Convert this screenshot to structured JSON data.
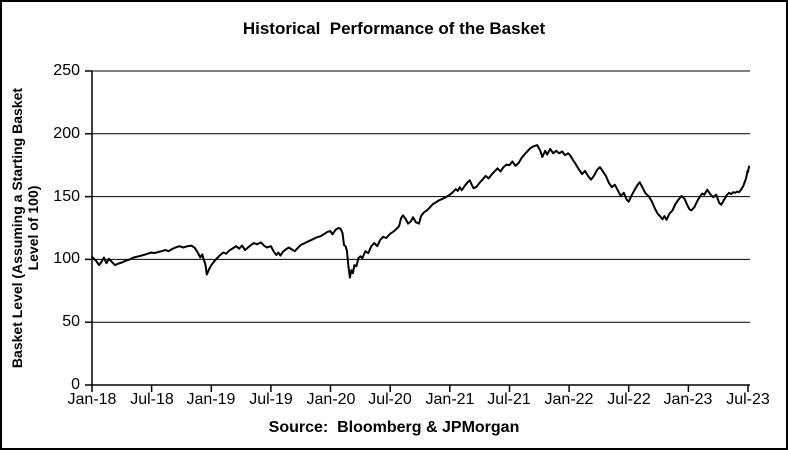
{
  "chart": {
    "title": "Historical  Performance of the Basket",
    "y_axis_title_line1": "Basket Level (Assuming a Starting Basket",
    "y_axis_title_line2": "Level of 100)",
    "source": "Source:  Bloomberg & JPMorgan"
  },
  "chart_data": {
    "type": "line",
    "title": "Historical Performance of the Basket",
    "ylabel": "Basket Level (Assuming a Starting Basket Level of 100)",
    "xlabel": "",
    "source_note": "Source: Bloomberg & JPMorgan",
    "legend": "none",
    "grid": "horizontal",
    "line_color": "#000000",
    "ylim": [
      0,
      250
    ],
    "y_ticks": [
      0,
      50,
      100,
      150,
      200,
      250
    ],
    "y_tick_labels": [
      "0",
      "50",
      "100",
      "150",
      "200",
      "250"
    ],
    "x_tick_labels": [
      "Jan-18",
      "Jul-18",
      "Jan-19",
      "Jul-19",
      "Jan-20",
      "Jul-20",
      "Jan-21",
      "Jul-21",
      "Jan-22",
      "Jul-22",
      "Jan-23",
      "Jul-23"
    ],
    "x_unit": "months since Jan-2018",
    "x_tick_interval_months": 6,
    "xlim": [
      0,
      66.1
    ],
    "series": [
      {
        "name": "Basket Level",
        "points": [
          [
            0,
            102
          ],
          [
            0.4,
            99
          ],
          [
            0.7,
            95.5
          ],
          [
            1,
            98.5
          ],
          [
            1.2,
            101.5
          ],
          [
            1.45,
            97
          ],
          [
            1.7,
            100.5
          ],
          [
            2,
            98
          ],
          [
            2.3,
            95.5
          ],
          [
            2.6,
            96.5
          ],
          [
            3,
            97.5
          ],
          [
            3.4,
            99
          ],
          [
            3.8,
            100
          ],
          [
            4.2,
            101.5
          ],
          [
            4.7,
            102.5
          ],
          [
            5.2,
            103.5
          ],
          [
            5.6,
            104.5
          ],
          [
            6,
            105.5
          ],
          [
            6.3,
            105
          ],
          [
            6.7,
            106
          ],
          [
            7,
            106.5
          ],
          [
            7.4,
            107.5
          ],
          [
            7.7,
            106.5
          ],
          [
            8,
            108
          ],
          [
            8.4,
            109.5
          ],
          [
            8.8,
            110.5
          ],
          [
            9.2,
            109.5
          ],
          [
            9.6,
            110.5
          ],
          [
            10,
            111
          ],
          [
            10.3,
            109.5
          ],
          [
            10.6,
            106
          ],
          [
            10.9,
            101.5
          ],
          [
            11.1,
            104
          ],
          [
            11.25,
            99.5
          ],
          [
            11.4,
            96.5
          ],
          [
            11.55,
            88
          ],
          [
            11.8,
            92.5
          ],
          [
            12,
            95.5
          ],
          [
            12.3,
            98.5
          ],
          [
            12.6,
            101
          ],
          [
            12.9,
            103.5
          ],
          [
            13.2,
            105.5
          ],
          [
            13.5,
            104.5
          ],
          [
            13.8,
            107
          ],
          [
            14.2,
            109
          ],
          [
            14.5,
            110.5
          ],
          [
            14.8,
            108.5
          ],
          [
            15.1,
            111
          ],
          [
            15.4,
            107.5
          ],
          [
            15.7,
            109.5
          ],
          [
            16,
            111.5
          ],
          [
            16.3,
            113
          ],
          [
            16.6,
            112
          ],
          [
            17,
            113.5
          ],
          [
            17.3,
            111
          ],
          [
            17.6,
            109.5
          ],
          [
            18,
            110.5
          ],
          [
            18.3,
            106
          ],
          [
            18.55,
            103.5
          ],
          [
            18.75,
            105.5
          ],
          [
            18.95,
            103
          ],
          [
            19.2,
            106
          ],
          [
            19.5,
            108
          ],
          [
            19.8,
            109.5
          ],
          [
            20.1,
            108
          ],
          [
            20.4,
            106.5
          ],
          [
            20.7,
            109
          ],
          [
            21,
            111.5
          ],
          [
            21.4,
            113
          ],
          [
            21.8,
            114.5
          ],
          [
            22.2,
            116
          ],
          [
            22.6,
            117.5
          ],
          [
            23,
            118.5
          ],
          [
            23.4,
            120.5
          ],
          [
            23.7,
            122
          ],
          [
            24,
            122.5
          ],
          [
            24.2,
            120
          ],
          [
            24.5,
            123.5
          ],
          [
            24.8,
            125
          ],
          [
            25,
            124.5
          ],
          [
            25.2,
            121
          ],
          [
            25.35,
            111.5
          ],
          [
            25.5,
            110.5
          ],
          [
            25.65,
            107
          ],
          [
            25.8,
            94.5
          ],
          [
            25.95,
            85.5
          ],
          [
            26.1,
            91.5
          ],
          [
            26.25,
            89
          ],
          [
            26.4,
            95.5
          ],
          [
            26.6,
            94.5
          ],
          [
            26.8,
            101
          ],
          [
            27,
            102.5
          ],
          [
            27.2,
            101
          ],
          [
            27.5,
            106.5
          ],
          [
            27.8,
            105
          ],
          [
            28.1,
            110.5
          ],
          [
            28.4,
            113
          ],
          [
            28.7,
            110.5
          ],
          [
            29,
            115.5
          ],
          [
            29.3,
            118
          ],
          [
            29.6,
            117
          ],
          [
            30,
            120.5
          ],
          [
            30.3,
            122
          ],
          [
            30.6,
            124
          ],
          [
            30.9,
            126.5
          ],
          [
            31.1,
            133
          ],
          [
            31.3,
            135
          ],
          [
            31.6,
            131.5
          ],
          [
            31.8,
            128.5
          ],
          [
            32.1,
            130.5
          ],
          [
            32.3,
            133.5
          ],
          [
            32.6,
            129.5
          ],
          [
            32.9,
            128.5
          ],
          [
            33.1,
            134.5
          ],
          [
            33.4,
            137.5
          ],
          [
            33.7,
            139
          ],
          [
            34,
            141.5
          ],
          [
            34.3,
            144
          ],
          [
            34.6,
            145.5
          ],
          [
            34.9,
            147
          ],
          [
            35.2,
            148
          ],
          [
            35.6,
            149.5
          ],
          [
            36,
            151.5
          ],
          [
            36.3,
            153.5
          ],
          [
            36.6,
            156
          ],
          [
            36.8,
            154.5
          ],
          [
            37,
            157.5
          ],
          [
            37.2,
            155
          ],
          [
            37.5,
            158.5
          ],
          [
            37.8,
            161.5
          ],
          [
            38,
            163
          ],
          [
            38.2,
            159.5
          ],
          [
            38.4,
            156.5
          ],
          [
            38.7,
            158
          ],
          [
            39,
            161
          ],
          [
            39.3,
            163.5
          ],
          [
            39.6,
            166.5
          ],
          [
            39.9,
            164.5
          ],
          [
            40.2,
            167.5
          ],
          [
            40.5,
            170
          ],
          [
            40.8,
            172.5
          ],
          [
            41.1,
            170
          ],
          [
            41.4,
            173.5
          ],
          [
            41.7,
            175.5
          ],
          [
            42,
            175
          ],
          [
            42.3,
            178
          ],
          [
            42.6,
            174.5
          ],
          [
            42.9,
            176.5
          ],
          [
            43.2,
            180.5
          ],
          [
            43.5,
            183.5
          ],
          [
            43.8,
            186
          ],
          [
            44.1,
            188.5
          ],
          [
            44.4,
            190
          ],
          [
            44.8,
            191
          ],
          [
            45.1,
            186.5
          ],
          [
            45.3,
            181.5
          ],
          [
            45.6,
            186.5
          ],
          [
            45.8,
            183.5
          ],
          [
            46.1,
            188
          ],
          [
            46.4,
            184.5
          ],
          [
            46.7,
            186.5
          ],
          [
            47,
            184.5
          ],
          [
            47.3,
            186
          ],
          [
            47.6,
            183
          ],
          [
            47.9,
            184.5
          ],
          [
            48.1,
            183
          ],
          [
            48.4,
            179
          ],
          [
            48.7,
            175.5
          ],
          [
            49,
            171.5
          ],
          [
            49.3,
            168
          ],
          [
            49.6,
            170.5
          ],
          [
            49.9,
            166.5
          ],
          [
            50.2,
            163.5
          ],
          [
            50.5,
            166.5
          ],
          [
            50.8,
            171
          ],
          [
            51.1,
            173.5
          ],
          [
            51.4,
            170
          ],
          [
            51.7,
            166.5
          ],
          [
            52,
            161
          ],
          [
            52.3,
            157.5
          ],
          [
            52.6,
            159.5
          ],
          [
            52.9,
            155
          ],
          [
            53.2,
            150.5
          ],
          [
            53.5,
            153
          ],
          [
            53.8,
            147.5
          ],
          [
            54,
            146
          ],
          [
            54.3,
            151
          ],
          [
            54.6,
            155.5
          ],
          [
            54.9,
            159.5
          ],
          [
            55.1,
            161.5
          ],
          [
            55.4,
            157
          ],
          [
            55.7,
            152.5
          ],
          [
            56,
            150.5
          ],
          [
            56.3,
            146.5
          ],
          [
            56.6,
            141
          ],
          [
            56.9,
            136.5
          ],
          [
            57.2,
            134
          ],
          [
            57.4,
            132
          ],
          [
            57.6,
            134.5
          ],
          [
            57.8,
            131.5
          ],
          [
            58.1,
            136.5
          ],
          [
            58.4,
            139
          ],
          [
            58.7,
            144
          ],
          [
            59,
            147.5
          ],
          [
            59.3,
            150.5
          ],
          [
            59.6,
            148.5
          ],
          [
            59.9,
            143
          ],
          [
            60.1,
            140
          ],
          [
            60.3,
            139
          ],
          [
            60.6,
            141.5
          ],
          [
            60.9,
            146.5
          ],
          [
            61.2,
            150.5
          ],
          [
            61.4,
            152.5
          ],
          [
            61.6,
            151.5
          ],
          [
            61.9,
            155.5
          ],
          [
            62.2,
            152
          ],
          [
            62.5,
            149.5
          ],
          [
            62.8,
            151.5
          ],
          [
            63.1,
            145
          ],
          [
            63.3,
            143.5
          ],
          [
            63.6,
            147.5
          ],
          [
            63.9,
            151.5
          ],
          [
            64.1,
            153
          ],
          [
            64.3,
            152
          ],
          [
            64.5,
            153.5
          ],
          [
            64.7,
            153
          ],
          [
            64.9,
            154
          ],
          [
            65.1,
            153.5
          ],
          [
            65.3,
            155.5
          ],
          [
            65.5,
            158
          ],
          [
            65.65,
            161
          ],
          [
            65.8,
            164.5
          ],
          [
            65.9,
            168
          ],
          [
            65.95,
            170.5
          ],
          [
            66,
            169.5
          ],
          [
            66.1,
            174
          ]
        ]
      }
    ]
  }
}
